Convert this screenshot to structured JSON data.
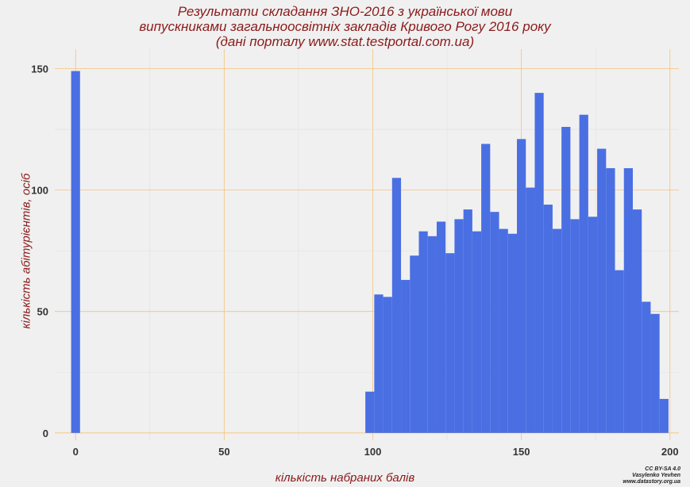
{
  "chart_data": {
    "type": "bar",
    "title_lines": [
      "Результати складання ЗНО-2016 з української мови",
      "випускниками загальноосвітніх закладів Кривого Рогу 2016 року",
      "(дані порталу www.stat.testportal.com.ua)"
    ],
    "xlabel": "кількість набраних балів",
    "ylabel": "кількість абітурієнтів, осіб",
    "xlim": [
      -7,
      203
    ],
    "ylim": [
      -3,
      158
    ],
    "xticks": [
      0,
      50,
      100,
      150,
      200
    ],
    "yticks": [
      0,
      50,
      100,
      150
    ],
    "grid": true,
    "bin_width": 3,
    "colors": {
      "bar": "#4a6fe3",
      "grid": "#f5c27a",
      "title": "#8b1a1a",
      "background": "#f0f0f0"
    },
    "bins": [
      {
        "x": 0,
        "value": 149
      },
      {
        "x": 99,
        "value": 17
      },
      {
        "x": 102,
        "value": 57
      },
      {
        "x": 105,
        "value": 56
      },
      {
        "x": 108,
        "value": 105
      },
      {
        "x": 111,
        "value": 63
      },
      {
        "x": 114,
        "value": 73
      },
      {
        "x": 117,
        "value": 83
      },
      {
        "x": 120,
        "value": 81
      },
      {
        "x": 123,
        "value": 87
      },
      {
        "x": 126,
        "value": 74
      },
      {
        "x": 129,
        "value": 88
      },
      {
        "x": 132,
        "value": 92
      },
      {
        "x": 135,
        "value": 83
      },
      {
        "x": 138,
        "value": 119
      },
      {
        "x": 141,
        "value": 91
      },
      {
        "x": 144,
        "value": 84
      },
      {
        "x": 147,
        "value": 82
      },
      {
        "x": 150,
        "value": 121
      },
      {
        "x": 153,
        "value": 101
      },
      {
        "x": 156,
        "value": 140
      },
      {
        "x": 159,
        "value": 94
      },
      {
        "x": 162,
        "value": 84
      },
      {
        "x": 165,
        "value": 126
      },
      {
        "x": 168,
        "value": 88
      },
      {
        "x": 171,
        "value": 131
      },
      {
        "x": 174,
        "value": 89
      },
      {
        "x": 177,
        "value": 117
      },
      {
        "x": 180,
        "value": 109
      },
      {
        "x": 183,
        "value": 67
      },
      {
        "x": 186,
        "value": 109
      },
      {
        "x": 189,
        "value": 92
      },
      {
        "x": 192,
        "value": 54
      },
      {
        "x": 195,
        "value": 49
      },
      {
        "x": 198,
        "value": 14
      }
    ]
  },
  "credit": {
    "line1": "CC BY-SA 4.0",
    "line2": "Vasylenko Yevhen",
    "line3": "www.datastory.org.ua"
  }
}
